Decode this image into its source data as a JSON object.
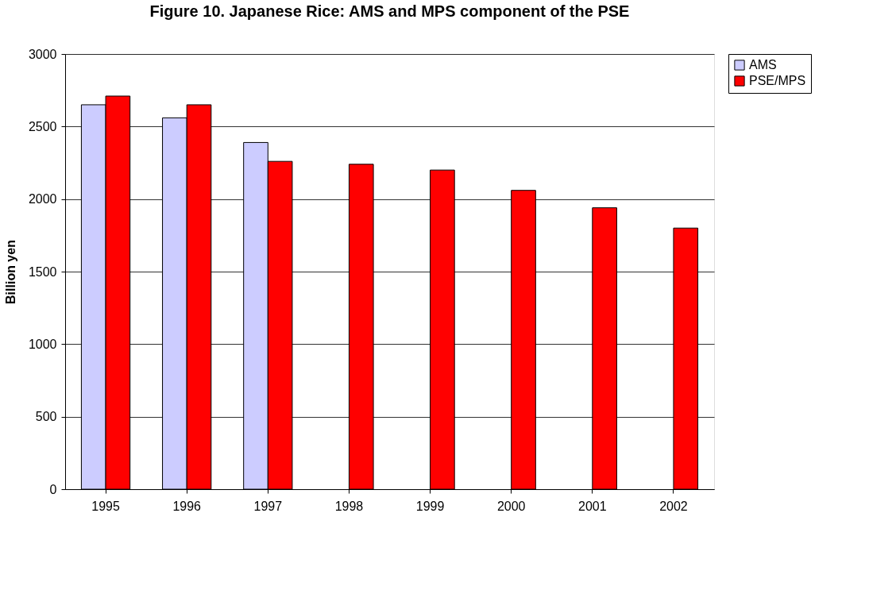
{
  "chart_data": {
    "type": "bar",
    "title": "Figure 10. Japanese Rice: AMS and MPS component of the PSE",
    "ylabel": "Billion yen",
    "categories": [
      "1995",
      "1996",
      "1997",
      "1998",
      "1999",
      "2000",
      "2001",
      "2002"
    ],
    "series": [
      {
        "name": "AMS",
        "color": "#ccccff",
        "values": [
          2650,
          2560,
          2390,
          null,
          null,
          null,
          null,
          null
        ]
      },
      {
        "name": "PSE/MPS",
        "color": "#ff0000",
        "values": [
          2710,
          2650,
          2260,
          2240,
          2200,
          2060,
          1940,
          1800
        ]
      }
    ],
    "ylim": [
      0,
      3000
    ],
    "yticks": [
      0,
      500,
      1000,
      1500,
      2000,
      2500,
      3000
    ],
    "grid": "y",
    "legend": "right"
  }
}
